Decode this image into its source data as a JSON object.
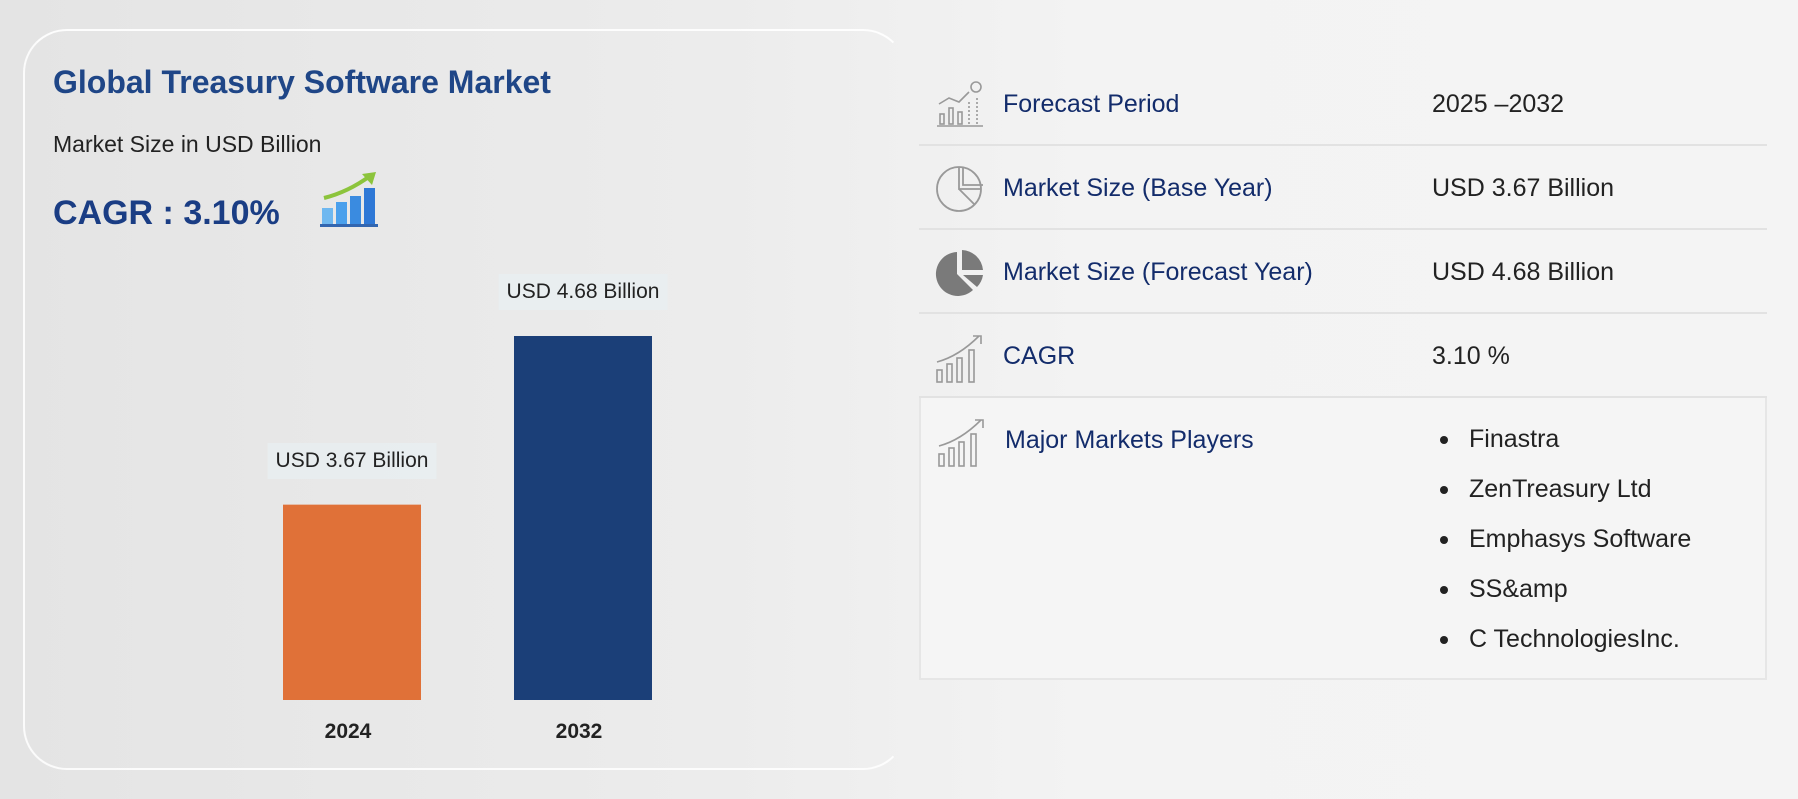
{
  "header": {
    "title": "Global Treasury Software Market",
    "subtitle": "Market Size in USD Billion",
    "cagr": "CAGR : 3.10%",
    "cagr_icon": "growth-chart-icon"
  },
  "chart_data": {
    "type": "bar",
    "categories": [
      "2024",
      "2032"
    ],
    "values": [
      3.67,
      4.68
    ],
    "data_labels": [
      "USD 3.67 Billion",
      "USD 4.68 Billion"
    ],
    "colors": [
      "#e07138",
      "#1b3f78"
    ],
    "ylim": [
      2.5,
      4.68
    ],
    "grid": false,
    "title": "",
    "xlabel": "",
    "ylabel": ""
  },
  "table": {
    "rows": [
      {
        "label": "Forecast Period",
        "value": "2025 –2032",
        "icon": "forecast-chart-icon"
      },
      {
        "label": "Market Size (Base Year)",
        "value": "USD 3.67 Billion",
        "icon": "pie-chart-outline-icon"
      },
      {
        "label": "Market Size (Forecast Year)",
        "value": "USD 4.68 Billion",
        "icon": "pie-chart-filled-icon"
      },
      {
        "label": "CAGR",
        "value": "3.10 %",
        "icon": "bar-growth-icon"
      }
    ],
    "players": {
      "label": "Major Markets Players",
      "icon": "bar-growth-icon",
      "items": [
        "Finastra",
        "ZenTreasury Ltd",
        "Emphasys Software",
        "SS&amp",
        "C TechnologiesInc."
      ]
    }
  }
}
